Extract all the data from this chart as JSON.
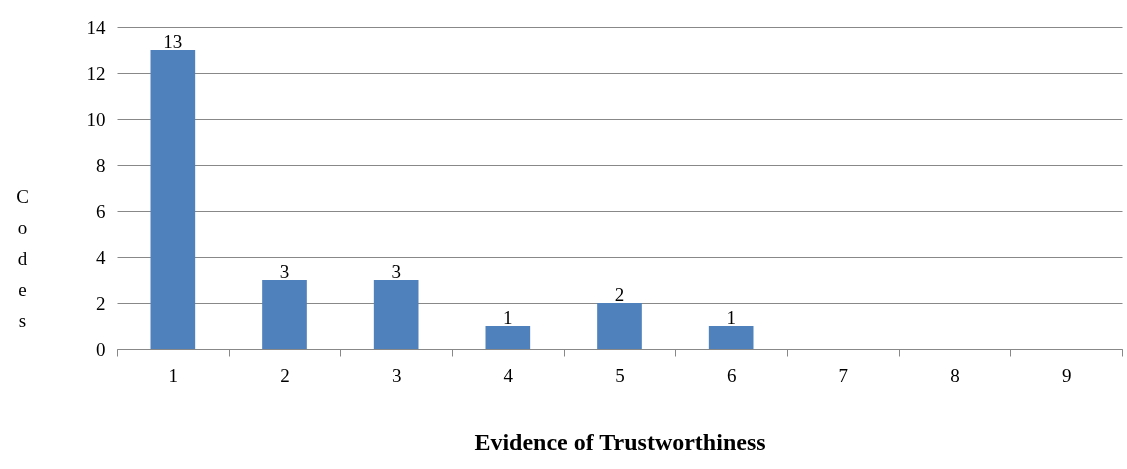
{
  "chart_data": {
    "type": "bar",
    "xlabel": "Evidence of Trustworthiness",
    "ylabel": "Codes",
    "categories": [
      "1",
      "2",
      "3",
      "4",
      "5",
      "6",
      "7",
      "8",
      "9"
    ],
    "values": [
      13,
      3,
      3,
      1,
      2,
      1,
      null,
      null,
      null
    ],
    "value_labels": [
      "13",
      "3",
      "3",
      "1",
      "2",
      "1",
      null,
      null,
      null
    ],
    "color": "#4f81bd",
    "ylim": [
      0,
      14
    ],
    "yticks": [
      0,
      2,
      4,
      6,
      8,
      10,
      12,
      14
    ],
    "grid": "y"
  }
}
